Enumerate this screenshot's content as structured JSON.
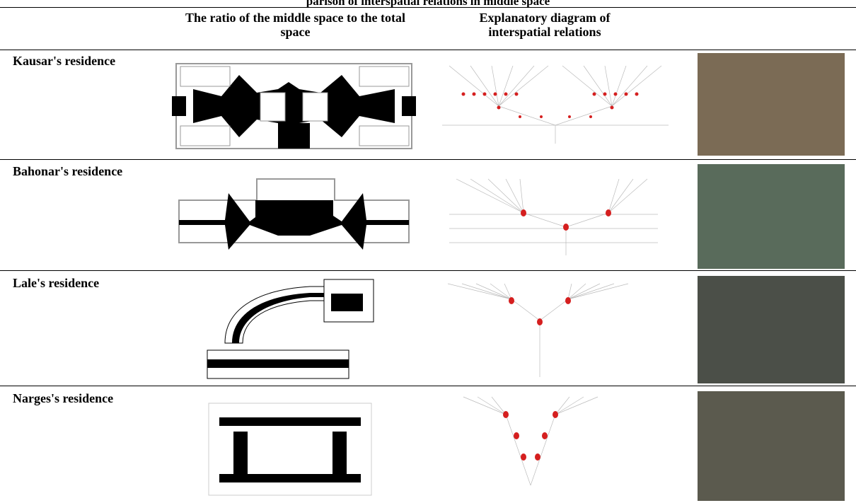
{
  "table": {
    "title_fragment": "parison of interspatial relations in middle space",
    "headers": {
      "ratio": "The ratio of the middle space to the total space",
      "diagram": "Explanatory diagram of interspatial relations"
    },
    "rows": [
      {
        "label": "Kausar's residence"
      },
      {
        "label": "Bahonar's residence"
      },
      {
        "label": "Lale's residence"
      },
      {
        "label": "Narges's residence"
      }
    ]
  },
  "colors": {
    "node_red": "#d51f1f",
    "plan_black": "#000000",
    "plan_outline": "#9a9a9a"
  }
}
